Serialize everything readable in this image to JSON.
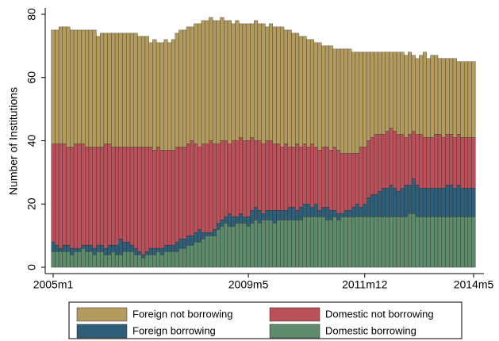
{
  "chart_data": {
    "type": "stacked-bar",
    "y_label": "Number of Institutions",
    "ylim": [
      -2,
      82
    ],
    "yticks": [
      0,
      20,
      40,
      60,
      80
    ],
    "categories": [
      "2005m1",
      null,
      null,
      null,
      null,
      null,
      null,
      null,
      null,
      null,
      null,
      null,
      null,
      null,
      null,
      null,
      null,
      null,
      null,
      null,
      null,
      null,
      null,
      null,
      null,
      null,
      null,
      null,
      null,
      null,
      null,
      null,
      null,
      null,
      null,
      null,
      null,
      null,
      null,
      null,
      null,
      null,
      null,
      null,
      null,
      null,
      null,
      null,
      null,
      null,
      null,
      null,
      "2009m5",
      null,
      null,
      null,
      null,
      null,
      null,
      null,
      null,
      null,
      null,
      null,
      null,
      null,
      null,
      null,
      null,
      null,
      null,
      null,
      null,
      null,
      null,
      null,
      null,
      null,
      null,
      null,
      null,
      null,
      null,
      "2011m12",
      null,
      null,
      null,
      null,
      null,
      null,
      null,
      null,
      null,
      null,
      null,
      null,
      null,
      null,
      null,
      null,
      null,
      null,
      null,
      null,
      null,
      null,
      null,
      null,
      null,
      null,
      null,
      null,
      "2014m5"
    ],
    "series": [
      {
        "name": "Domestic borrowing",
        "color": "#5e8b6b",
        "values": [
          5,
          5,
          5,
          5,
          5,
          4,
          5,
          5,
          6,
          5,
          5,
          4,
          5,
          5,
          4,
          4,
          5,
          4,
          4,
          5,
          5,
          5,
          4,
          4,
          3,
          4,
          4,
          4,
          5,
          4,
          5,
          5,
          5,
          5,
          6,
          6,
          7,
          7,
          8,
          8,
          9,
          10,
          10,
          10,
          12,
          13,
          14,
          13,
          13,
          14,
          14,
          14,
          13,
          14,
          15,
          14,
          15,
          15,
          15,
          14,
          15,
          15,
          15,
          15,
          15,
          15,
          15,
          16,
          16,
          16,
          16,
          16,
          16,
          15,
          15,
          16,
          15,
          16,
          16,
          16,
          16,
          16,
          16,
          16,
          16,
          16,
          16,
          16,
          16,
          16,
          16,
          16,
          16,
          16,
          16,
          17,
          17,
          16,
          16,
          16,
          16,
          16,
          16,
          16,
          16,
          16,
          16,
          16,
          16,
          16,
          16,
          16,
          16
        ]
      },
      {
        "name": "Foreign borrowing",
        "color": "#2f5f78",
        "values": [
          3,
          2,
          1,
          2,
          2,
          2,
          1,
          1,
          1,
          2,
          2,
          2,
          2,
          2,
          2,
          3,
          2,
          3,
          5,
          3,
          3,
          2,
          2,
          1,
          1,
          1,
          2,
          2,
          1,
          2,
          2,
          2,
          2,
          3,
          3,
          3,
          3,
          3,
          3,
          4,
          2,
          1,
          1,
          2,
          2,
          2,
          2,
          4,
          3,
          2,
          3,
          2,
          3,
          4,
          4,
          4,
          2,
          3,
          3,
          4,
          3,
          3,
          3,
          4,
          4,
          3,
          4,
          4,
          4,
          3,
          4,
          2,
          3,
          4,
          3,
          2,
          2,
          1,
          2,
          2,
          3,
          4,
          3,
          4,
          6,
          7,
          7,
          8,
          9,
          9,
          10,
          9,
          8,
          9,
          10,
          9,
          11,
          10,
          9,
          9,
          9,
          9,
          9,
          9,
          9,
          10,
          10,
          9,
          10,
          9,
          9,
          9,
          9
        ]
      },
      {
        "name": "Domestic not borrowing",
        "color": "#b9505a",
        "values": [
          31,
          32,
          33,
          32,
          31,
          32,
          33,
          33,
          32,
          31,
          31,
          32,
          31,
          31,
          33,
          32,
          31,
          31,
          29,
          30,
          30,
          31,
          32,
          33,
          34,
          33,
          32,
          31,
          32,
          31,
          30,
          30,
          30,
          30,
          29,
          29,
          29,
          30,
          28,
          26,
          28,
          28,
          29,
          27,
          25,
          25,
          24,
          22,
          24,
          24,
          24,
          24,
          24,
          23,
          21,
          22,
          22,
          22,
          22,
          21,
          21,
          20,
          21,
          19,
          19,
          21,
          19,
          19,
          18,
          20,
          18,
          19,
          19,
          19,
          19,
          20,
          20,
          19,
          18,
          18,
          17,
          16,
          19,
          18,
          18,
          18,
          19,
          18,
          17,
          18,
          18,
          18,
          18,
          17,
          15,
          16,
          15,
          16,
          17,
          16,
          16,
          16,
          17,
          17,
          16,
          16,
          16,
          16,
          16,
          16,
          16,
          16,
          16
        ]
      },
      {
        "name": "Foreign not borrowing",
        "color": "#b39b5e",
        "values": [
          36,
          36,
          37,
          37,
          38,
          37,
          36,
          36,
          36,
          37,
          37,
          37,
          35,
          36,
          35,
          35,
          36,
          36,
          36,
          36,
          36,
          36,
          36,
          35,
          35,
          35,
          33,
          35,
          33,
          34,
          35,
          34,
          35,
          36,
          37,
          37,
          37,
          36,
          38,
          39,
          39,
          39,
          39,
          39,
          39,
          39,
          38,
          39,
          37,
          38,
          36,
          37,
          37,
          36,
          38,
          37,
          38,
          36,
          37,
          37,
          37,
          38,
          36,
          37,
          36,
          35,
          35,
          34,
          34,
          33,
          33,
          34,
          32,
          32,
          33,
          31,
          32,
          33,
          33,
          33,
          32,
          32,
          30,
          30,
          28,
          27,
          26,
          26,
          26,
          25,
          24,
          25,
          26,
          26,
          26,
          26,
          24,
          24,
          25,
          27,
          25,
          26,
          25,
          24,
          25,
          24,
          24,
          25,
          23,
          24,
          24,
          24,
          24
        ]
      }
    ],
    "legend_columns": 2
  }
}
